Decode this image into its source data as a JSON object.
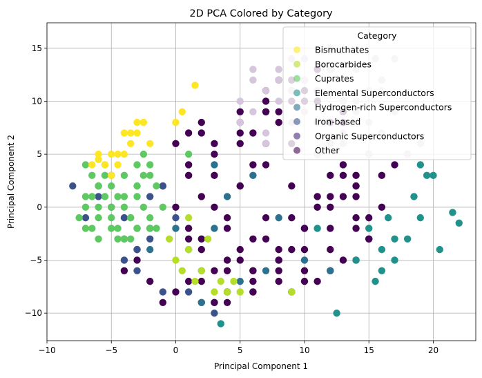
{
  "chart_data": {
    "type": "scatter",
    "title": "2D PCA Colored by Category",
    "xlabel": "Principal Component 1",
    "ylabel": "Principal Component 2",
    "xlim": [
      -10,
      23.3
    ],
    "ylim": [
      -12.6,
      17.4
    ],
    "xticks": [
      -10,
      -5,
      0,
      5,
      10,
      15,
      20
    ],
    "yticks": [
      -10,
      -5,
      0,
      5,
      10,
      15
    ],
    "grid": true,
    "legend": {
      "title": "Category",
      "placement": "upper-right"
    },
    "series": [
      {
        "name": "Other",
        "color": "#440154",
        "x": [
          0,
          1,
          2,
          3,
          4,
          5,
          6,
          7,
          8,
          9,
          10,
          11,
          12,
          13,
          14,
          15,
          2,
          4,
          6,
          8,
          10,
          12,
          14,
          3,
          5,
          7,
          9,
          11,
          13,
          1,
          -1,
          -2,
          -3,
          -4,
          0,
          2,
          4,
          6,
          8,
          10,
          12,
          14,
          16,
          5,
          7,
          9,
          11,
          13,
          15,
          6,
          8,
          10,
          12,
          3,
          5,
          7,
          9,
          11,
          13,
          2,
          4,
          6,
          8,
          10,
          12,
          14,
          1,
          3,
          5,
          7,
          9,
          11,
          4,
          6,
          8,
          10,
          12,
          14,
          16,
          17,
          18,
          -2,
          -3,
          0,
          1,
          2,
          3,
          9,
          11,
          13,
          15,
          5,
          7,
          8,
          10,
          12,
          4,
          6,
          9,
          11,
          14,
          -1,
          1,
          3,
          5,
          7,
          9,
          11,
          13,
          15,
          6,
          8,
          10,
          12,
          14,
          2,
          4,
          5,
          7,
          9,
          11,
          13,
          1,
          3
        ],
        "y": [
          0,
          -2,
          -4,
          -6,
          -8,
          2,
          4,
          6,
          8,
          10,
          12,
          5,
          3,
          1,
          -1,
          -3,
          1,
          -1,
          -3,
          -5,
          -7,
          -6,
          -5,
          6,
          8,
          10,
          12,
          11,
          9,
          4,
          2,
          -2,
          -4,
          -6,
          -8,
          -7,
          -9,
          -8,
          -7,
          -6,
          -4,
          -2,
          0,
          -5,
          -3,
          -1,
          1,
          3,
          5,
          7,
          9,
          11,
          13,
          0,
          2,
          4,
          6,
          8,
          10,
          -3,
          -5,
          -7,
          -6,
          -4,
          -2,
          1,
          3,
          5,
          7,
          9,
          11,
          13,
          -8,
          -6,
          -4,
          -2,
          0,
          2,
          3,
          4,
          5,
          -7,
          -5,
          6,
          7,
          8,
          -9,
          -8,
          -7,
          -5,
          -3,
          9,
          11,
          12,
          10,
          8,
          -2,
          -6,
          -4,
          0,
          2,
          -9,
          -3,
          3,
          6,
          9,
          12,
          10,
          4,
          -1,
          -8,
          -5,
          -2,
          1,
          3,
          7,
          -6,
          -4,
          -1,
          2,
          5,
          8,
          -7,
          -9
        ]
      },
      {
        "name": "Iron-based",
        "color": "#3b528b",
        "x": [
          -8,
          -6,
          -5,
          -4,
          -3,
          -2,
          -1,
          0,
          -5,
          -4,
          -3,
          -2,
          -6,
          -7,
          -4,
          -3,
          1,
          2,
          3,
          -1
        ],
        "y": [
          2,
          1,
          0,
          -1,
          -2,
          -3,
          2,
          -1,
          3,
          -3,
          -4,
          1,
          2,
          -1,
          -5,
          -6,
          -8,
          -9,
          -10,
          -8
        ]
      },
      {
        "name": "Hydrogen-rich Superconductors",
        "color": "#2c728e",
        "x": [
          1,
          2,
          3,
          4,
          6,
          8,
          10,
          12,
          2,
          5,
          9,
          -2,
          0,
          3,
          7
        ],
        "y": [
          -4,
          -6,
          -2,
          1,
          3,
          -1,
          -5,
          -6,
          -9,
          -7,
          -8,
          -4,
          -2,
          4,
          -6
        ]
      },
      {
        "name": "Elemental Superconductors",
        "color": "#21918c",
        "x": [
          15,
          16,
          17,
          18,
          19,
          19.5,
          20,
          21.5,
          22,
          20.5,
          18.5,
          16,
          14,
          12.5,
          15.5,
          17,
          16.5,
          19,
          11,
          3.5
        ],
        "y": [
          -2,
          -4,
          -5,
          -3,
          -1,
          3,
          3,
          -0.5,
          -1.5,
          -4,
          1,
          -6,
          -5,
          -10,
          -7,
          -3,
          -1,
          4,
          -2,
          -11
        ]
      },
      {
        "name": "Cuprates",
        "color": "#5ec962",
        "x": [
          -7,
          -6.5,
          -6,
          -5.5,
          -5,
          -4.5,
          -4,
          -3.5,
          -3,
          -2.5,
          -2,
          -1.5,
          -7,
          -6,
          -5,
          -4,
          -3,
          -2,
          -1,
          -6.5,
          -5.5,
          -4.5,
          -3.5,
          -2.5,
          -7,
          -6,
          -5,
          -4,
          -3,
          -2,
          -6,
          -5,
          -4,
          -3,
          -2.5,
          -7.5,
          -6.5,
          -5.5,
          -4.5,
          -3.5,
          -2,
          1,
          -1.5,
          -7,
          -6,
          -3
        ],
        "y": [
          0,
          1,
          2,
          3,
          2,
          1,
          0,
          -1,
          1,
          3,
          4,
          2,
          -2,
          -1,
          -2,
          -3,
          -2,
          -1,
          0,
          3,
          4,
          -3,
          -1,
          0,
          1,
          2,
          0,
          1,
          2,
          -2,
          -3,
          -1,
          3,
          4,
          5,
          -1,
          -2,
          1,
          -2,
          -3,
          3,
          5,
          -2,
          4,
          0,
          2
        ]
      },
      {
        "name": "Borocarbides",
        "color": "#b5de2b",
        "x": [
          0,
          0.5,
          1,
          1.5,
          2,
          2.5,
          3,
          3.5,
          4,
          5,
          -0.5,
          9,
          1,
          4.5
        ],
        "y": [
          -5,
          -6,
          -4,
          -7,
          -6,
          -3,
          -8,
          -7,
          -8,
          -8,
          -3,
          -8,
          -1,
          -7
        ]
      },
      {
        "name": "Bismuthates",
        "color": "#fde725",
        "x": [
          -6.5,
          -6,
          -5.5,
          -5,
          -4.5,
          -4,
          -3.5,
          -3,
          -2.5,
          -4.5,
          -3.5,
          -3,
          -2.5,
          -2,
          0,
          0.5,
          -5,
          -4,
          1.5,
          -6
        ],
        "y": [
          4,
          5,
          4,
          3,
          4,
          5,
          6,
          7,
          8,
          5,
          7,
          8,
          8,
          6,
          8,
          9,
          5,
          7,
          11.5,
          4.5
        ]
      },
      {
        "name": "Organic Superconductors",
        "color": "#d5c5dd",
        "x": [
          5,
          6,
          7,
          8,
          9,
          10,
          11,
          12,
          13,
          14,
          15,
          16,
          17,
          5,
          6,
          7,
          8,
          9,
          10,
          11,
          12,
          13,
          14,
          15,
          16,
          18,
          19,
          6,
          8,
          10,
          12,
          14,
          16,
          17,
          7,
          9,
          11,
          13,
          15,
          15.5
        ],
        "y": [
          10,
          12,
          11,
          13,
          14,
          12,
          11,
          13,
          10,
          9,
          8,
          7,
          9,
          8,
          9,
          7,
          10,
          11,
          9,
          8,
          6,
          7,
          10,
          11,
          12,
          5,
          6,
          13,
          12,
          14,
          15,
          13,
          11,
          14,
          6,
          8,
          5,
          6,
          5,
          14
        ]
      }
    ]
  }
}
